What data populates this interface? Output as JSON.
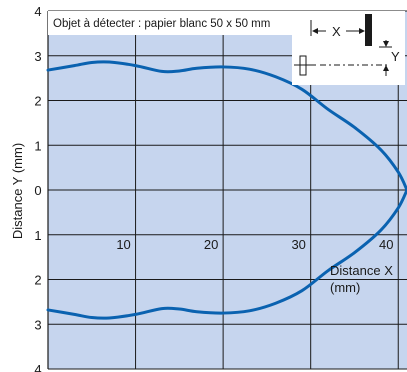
{
  "chart_data": {
    "type": "line",
    "annotation": "Objet à détecter : papier blanc 50 x 50 mm",
    "ylabel": "Distance Y (mm)",
    "xlabel_line1": "Distance X",
    "xlabel_line2": "(mm)",
    "diagram": {
      "x_label": "X",
      "y_label": "Y"
    },
    "x_ticks": [
      "10",
      "20",
      "30",
      "40"
    ],
    "y_ticks": [
      "4",
      "3",
      "2",
      "1",
      "0",
      "1",
      "2",
      "3",
      "4"
    ],
    "xlim": [
      0,
      41
    ],
    "ylim": [
      -4,
      4
    ],
    "grid": true,
    "colors": {
      "background": "#c6d5ee",
      "series": "#0a62b0",
      "grid": "#1a1a1a"
    },
    "series": [
      {
        "x": [
          0,
          3,
          5,
          7,
          10,
          13,
          15,
          17,
          20,
          23,
          26,
          29,
          32,
          35,
          38,
          40,
          41
        ],
        "y": [
          2.68,
          2.78,
          2.85,
          2.86,
          2.78,
          2.65,
          2.66,
          2.72,
          2.75,
          2.7,
          2.53,
          2.25,
          1.8,
          1.4,
          0.9,
          0.4,
          0.0
        ]
      },
      {
        "x": [
          0,
          3,
          5,
          7,
          10,
          13,
          15,
          17,
          20,
          23,
          26,
          29,
          32,
          35,
          38,
          40,
          41
        ],
        "y": [
          -2.68,
          -2.78,
          -2.85,
          -2.86,
          -2.78,
          -2.65,
          -2.66,
          -2.72,
          -2.75,
          -2.7,
          -2.53,
          -2.25,
          -1.8,
          -1.4,
          -0.9,
          -0.4,
          0.0
        ]
      }
    ]
  }
}
